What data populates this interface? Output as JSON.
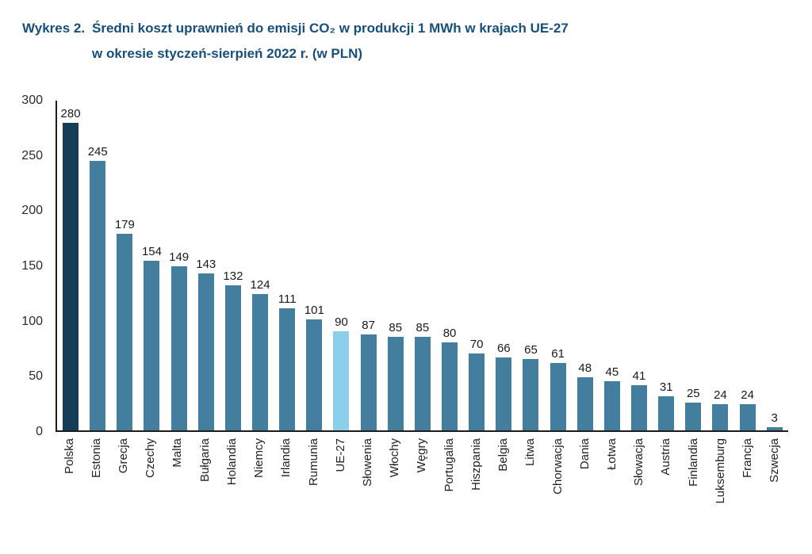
{
  "title": {
    "label": "Wykres 2.",
    "line1": "Średni koszt uprawnień do emisji CO₂ w produkcji 1 MWh w krajach UE-27",
    "line2": "w okresie styczeń-sierpień 2022 r. (w PLN)"
  },
  "chart_data": {
    "type": "bar",
    "title": "Średni koszt uprawnień do emisji CO₂ w produkcji 1 MWh w krajach UE-27 w okresie styczeń-sierpień 2022 r. (w PLN)",
    "categories": [
      "Polska",
      "Estonia",
      "Grecja",
      "Czechy",
      "Malta",
      "Bułgaria",
      "Holandia",
      "Niemcy",
      "Irlandia",
      "Rumunia",
      "UE-27",
      "Słowenia",
      "Włochy",
      "Węgry",
      "Portugalia",
      "Hiszpania",
      "Belgia",
      "Litwa",
      "Chorwacja",
      "Dania",
      "Łotwa",
      "Słowacja",
      "Austria",
      "Finlandia",
      "Luksemburg",
      "Francja",
      "Szwecja"
    ],
    "values": [
      280,
      245,
      179,
      154,
      149,
      143,
      132,
      124,
      111,
      101,
      90,
      87,
      85,
      85,
      80,
      70,
      66,
      65,
      61,
      48,
      45,
      41,
      31,
      25,
      24,
      24,
      3
    ],
    "xlabel": "",
    "ylabel": "",
    "ylim": [
      0,
      300
    ],
    "yticks": [
      0,
      50,
      100,
      150,
      200,
      250,
      300
    ],
    "grid": false,
    "legend": "none",
    "value_labels": true,
    "colors": {
      "default": "#447e9f",
      "overrides": {
        "Polska": "#153d57",
        "UE-27": "#8bcfea"
      }
    },
    "accent_title_color": "#174f7c"
  }
}
